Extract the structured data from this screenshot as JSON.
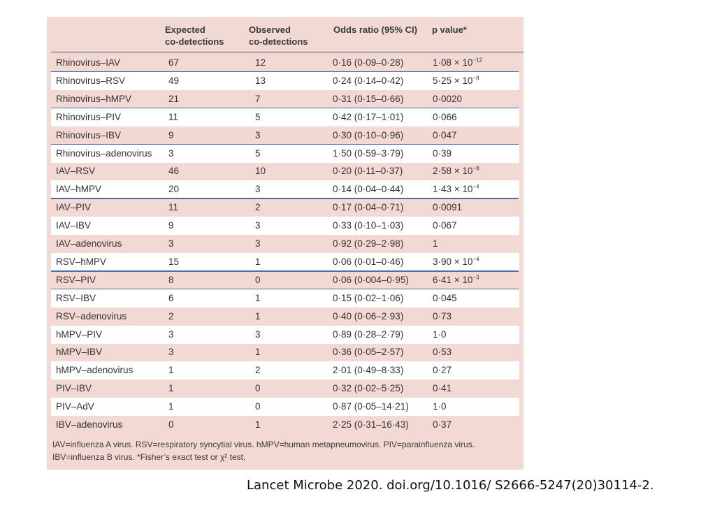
{
  "table": {
    "headers": [
      "",
      "Expected\nco-detections",
      "Observed\nco-detections",
      "Odds ratio (95% CI)",
      "p value*"
    ],
    "rows": [
      {
        "pair": "Rhinovirus–IAV",
        "expected": "67",
        "observed": "12",
        "or": "0·16 (0·09–0·28)",
        "p_base": "1·08 × 10",
        "p_exp": "−12"
      },
      {
        "pair": "Rhinovirus–RSV",
        "expected": "49",
        "observed": "13",
        "or": "0·24 (0·14–0·42)",
        "p_base": "5·25 × 10",
        "p_exp": "−8"
      },
      {
        "pair": "Rhinovirus–hMPV",
        "expected": "21",
        "observed": "7",
        "or": "0·31 (0·15–0·66)",
        "p_base": "0·0020",
        "p_exp": ""
      },
      {
        "pair": "Rhinovirus–PIV",
        "expected": "11",
        "observed": "5",
        "or": "0·42 (0·17–1·01)",
        "p_base": "0·066",
        "p_exp": ""
      },
      {
        "pair": "Rhinovirus–IBV",
        "expected": "9",
        "observed": "3",
        "or": "0·30 (0·10–0·96)",
        "p_base": "0·047",
        "p_exp": ""
      },
      {
        "pair": "Rhinovirus–adenovirus",
        "expected": "3",
        "observed": "5",
        "or": "1·50 (0·59–3·79)",
        "p_base": "0·39",
        "p_exp": ""
      },
      {
        "pair": "IAV–RSV",
        "expected": "46",
        "observed": "10",
        "or": "0·20 (0·11–0·37)",
        "p_base": "2·58 × 10",
        "p_exp": "−8"
      },
      {
        "pair": "IAV–hMPV",
        "expected": "20",
        "observed": "3",
        "or": "0·14 (0·04–0·44)",
        "p_base": "1·43 × 10",
        "p_exp": "−4"
      },
      {
        "pair": "IAV–PIV",
        "expected": "11",
        "observed": "2",
        "or": "0·17 (0·04–0·71)",
        "p_base": "0·0091",
        "p_exp": ""
      },
      {
        "pair": "IAV–IBV",
        "expected": "9",
        "observed": "3",
        "or": "0·33 (0·10–1·03)",
        "p_base": "0·067",
        "p_exp": ""
      },
      {
        "pair": "IAV–adenovirus",
        "expected": "3",
        "observed": "3",
        "or": "0·92 (0·29–2·98)",
        "p_base": "1",
        "p_exp": ""
      },
      {
        "pair": "RSV–hMPV",
        "expected": "15",
        "observed": "1",
        "or": "0·06 (0·01–0·46)",
        "p_base": "3·90 × 10",
        "p_exp": "−4"
      },
      {
        "pair": "RSV–PIV",
        "expected": "8",
        "observed": "0",
        "or": "0·06 (0·004–0·95)",
        "p_base": "6·41 × 10",
        "p_exp": "−3"
      },
      {
        "pair": "RSV–IBV",
        "expected": "6",
        "observed": "1",
        "or": "0·15 (0·02–1·06)",
        "p_base": "0·045",
        "p_exp": ""
      },
      {
        "pair": "RSV–adenovirus",
        "expected": "2",
        "observed": "1",
        "or": "0·40 (0·06–2·93)",
        "p_base": "0·73",
        "p_exp": ""
      },
      {
        "pair": "hMPV–PIV",
        "expected": "3",
        "observed": "3",
        "or": "0·89 (0·28–2·79)",
        "p_base": "1·0",
        "p_exp": ""
      },
      {
        "pair": "hMPV–IBV",
        "expected": "3",
        "observed": "1",
        "or": "0·36 (0·05–2·57)",
        "p_base": "0·53",
        "p_exp": ""
      },
      {
        "pair": "hMPV–adenovirus",
        "expected": "1",
        "observed": "2",
        "or": "2·01 (0·49–8·33)",
        "p_base": "0·27",
        "p_exp": ""
      },
      {
        "pair": "PIV–IBV",
        "expected": "1",
        "observed": "0",
        "or": "0·32 (0·02–5·25)",
        "p_base": "0·41",
        "p_exp": ""
      },
      {
        "pair": "PIV–AdV",
        "expected": "1",
        "observed": "0",
        "or": "0·87 (0·05–14·21)",
        "p_base": "1·0",
        "p_exp": ""
      },
      {
        "pair": "IBV–adenovirus",
        "expected": "0",
        "observed": "1",
        "or": "2·25 (0·31–16·43)",
        "p_base": "0·37",
        "p_exp": ""
      }
    ],
    "footnote_line1": "IAV=influenza A virus. RSV=respiratory syncytial virus. hMPV=human metapneumovirus. PIV=parainfluenza virus.",
    "footnote_line2": "IBV=influenza B virus. *Fisher’s exact test or χ² test."
  },
  "citation": "Lancet Microbe 2020. doi.org/10.1016/ S2666-5247(20)30114-2.",
  "colors": {
    "panel_background": "#f3d9d3",
    "white_row": "#ffffff",
    "blue_rule": "#4a6fa5"
  }
}
